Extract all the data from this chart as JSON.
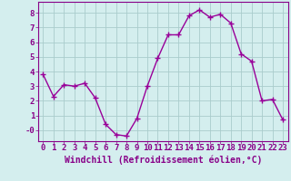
{
  "x": [
    0,
    1,
    2,
    3,
    4,
    5,
    6,
    7,
    8,
    9,
    10,
    11,
    12,
    13,
    14,
    15,
    16,
    17,
    18,
    19,
    20,
    21,
    22,
    23
  ],
  "y": [
    3.8,
    2.3,
    3.1,
    3.0,
    3.2,
    2.2,
    0.4,
    -0.3,
    -0.4,
    0.8,
    3.0,
    4.9,
    6.5,
    6.5,
    7.8,
    8.2,
    7.7,
    7.9,
    7.3,
    5.2,
    4.7,
    2.0,
    2.1,
    0.7
  ],
  "line_color": "#990099",
  "marker": "D",
  "marker_size": 2.5,
  "bg_color": "#d4eeee",
  "grid_color": "#bbdddd",
  "xlabel": "Windchill (Refroidissement éolien,°C)",
  "xlim": [
    -0.5,
    23.5
  ],
  "ylim": [
    -0.75,
    8.75
  ],
  "ytick_values": [
    0,
    1,
    2,
    3,
    4,
    5,
    6,
    7,
    8
  ],
  "ytick_labels": [
    "-0",
    "1",
    "2",
    "3",
    "4",
    "5",
    "6",
    "7",
    "8"
  ],
  "xticks": [
    0,
    1,
    2,
    3,
    4,
    5,
    6,
    7,
    8,
    9,
    10,
    11,
    12,
    13,
    14,
    15,
    16,
    17,
    18,
    19,
    20,
    21,
    22,
    23
  ],
  "tick_fontsize": 6.5,
  "xlabel_fontsize": 7,
  "line_width": 1.0,
  "purple": "#880088"
}
